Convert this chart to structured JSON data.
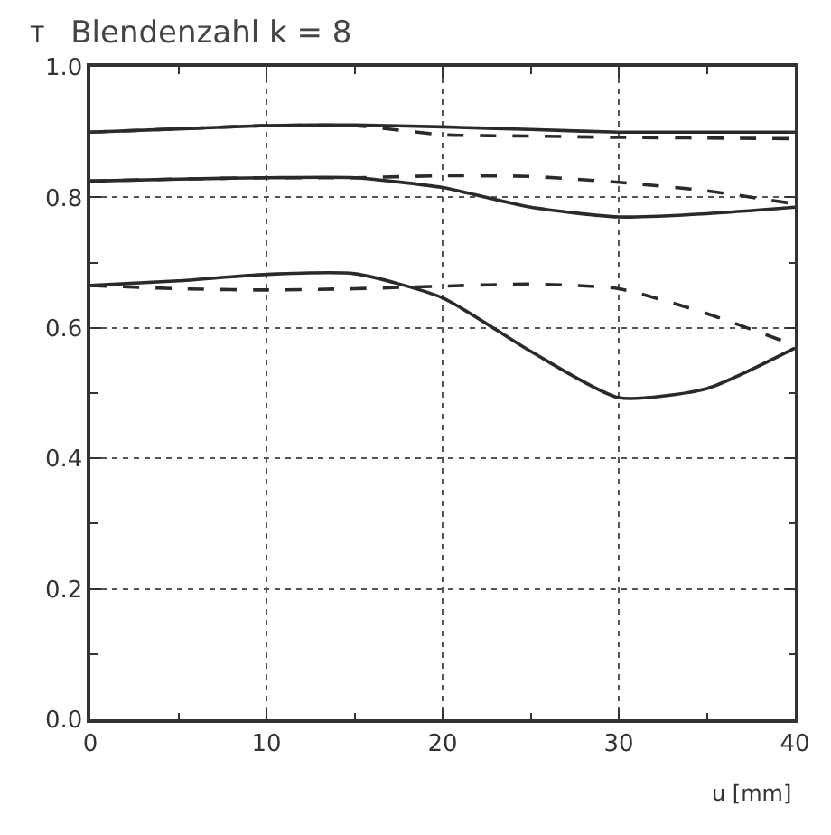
{
  "chart_data": {
    "type": "line",
    "title": "Blendenzahl k = 8",
    "ylabel": "T",
    "xlabel": "u [mm]",
    "x": [
      0,
      5,
      10,
      15,
      20,
      25,
      30,
      35,
      40
    ],
    "series": [
      {
        "color": "#2a2a2a",
        "line_style": "solid",
        "values": [
          0.9,
          0.905,
          0.91,
          0.911,
          0.908,
          0.904,
          0.9,
          0.9,
          0.9
        ]
      },
      {
        "color": "#2a2a2a",
        "line_style": "dashed",
        "values": [
          0.9,
          0.905,
          0.91,
          0.91,
          0.896,
          0.894,
          0.892,
          0.891,
          0.89
        ]
      },
      {
        "color": "#2a2a2a",
        "line_style": "solid",
        "values": [
          0.825,
          0.828,
          0.83,
          0.83,
          0.815,
          0.785,
          0.77,
          0.775,
          0.785
        ]
      },
      {
        "color": "#2a2a2a",
        "line_style": "dashed",
        "values": [
          0.825,
          0.828,
          0.83,
          0.83,
          0.833,
          0.832,
          0.823,
          0.81,
          0.79
        ]
      },
      {
        "color": "#2a2a2a",
        "line_style": "solid",
        "values": [
          0.665,
          0.672,
          0.682,
          0.683,
          0.646,
          0.564,
          0.493,
          0.507,
          0.569
        ]
      },
      {
        "color": "#2a2a2a",
        "line_style": "dashed",
        "values": [
          0.665,
          0.66,
          0.658,
          0.66,
          0.664,
          0.667,
          0.66,
          0.622,
          0.573
        ]
      }
    ],
    "xlim": [
      0,
      40
    ],
    "ylim": [
      0,
      1
    ],
    "xticks": [
      0,
      {
        "value": 5,
        "label": null
      },
      10,
      {
        "value": 15,
        "label": null
      },
      20,
      {
        "value": 25,
        "label": null
      },
      30,
      {
        "value": 35,
        "label": null
      },
      40
    ],
    "yticks": [
      {
        "value": 0,
        "label": "0.0"
      },
      {
        "value": 0.1,
        "label": null
      },
      0.2,
      {
        "value": 0.3,
        "label": null
      },
      0.4,
      {
        "value": 0.5,
        "label": null
      },
      0.6,
      {
        "value": 0.7,
        "label": null
      },
      0.8,
      {
        "value": 0.9,
        "label": null
      },
      {
        "value": 1,
        "label": "1.0"
      }
    ],
    "grid": true,
    "marker": "none"
  }
}
